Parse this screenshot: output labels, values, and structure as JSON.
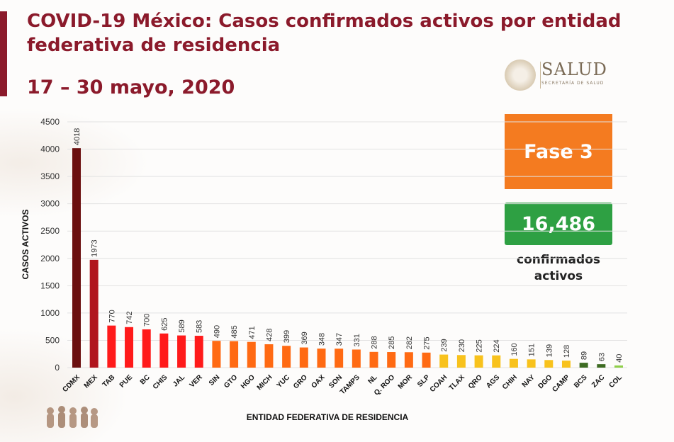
{
  "header": {
    "title_line1": "COVID-19 México: Casos confirmados activos por entidad",
    "title_line2": "federativa de residencia",
    "subtitle": "17 – 30 mayo, 2020"
  },
  "logo": {
    "name": "SALUD",
    "subtitle": "SECRETARÍA DE SALUD",
    "icon": "coat-of-arms-icon"
  },
  "info": {
    "phase": "Fase 3",
    "total": "16,486",
    "total_label_line1": "confirmados",
    "total_label_line2": "activos"
  },
  "colors": {
    "title": "#8b1a2b",
    "phase_box": "#f47b20",
    "total_box": "#2ea043"
  },
  "chart_data": {
    "type": "bar",
    "ylabel": "CASOS ACTIVOS",
    "xlabel": "ENTIDAD FEDERATIVA DE  RESIDENCIA",
    "ylim": [
      0,
      4500
    ],
    "yticks": [
      0,
      500,
      1000,
      1500,
      2000,
      2500,
      3000,
      3500,
      4000,
      4500
    ],
    "grid": true,
    "categories": [
      "CDMX",
      "MEX",
      "TAB",
      "PUE",
      "BC",
      "CHIS",
      "JAL",
      "VER",
      "SIN",
      "GTO",
      "HGO",
      "MICH",
      "YUC",
      "GRO",
      "OAX",
      "SON",
      "TAMPS",
      "NL",
      "Q. ROO",
      "MOR",
      "SLP",
      "COAH",
      "TLAX",
      "QRO",
      "AGS",
      "CHIH",
      "NAY",
      "DGO",
      "CAMP",
      "BCS",
      "ZAC",
      "COL"
    ],
    "values": [
      4018,
      1973,
      770,
      742,
      700,
      625,
      589,
      583,
      490,
      485,
      471,
      428,
      399,
      369,
      348,
      347,
      331,
      288,
      285,
      282,
      275,
      239,
      230,
      225,
      224,
      160,
      151,
      139,
      128,
      89,
      63,
      40
    ],
    "bar_colors": [
      "#6b0f0f",
      "#b0151e",
      "#ff1a1a",
      "#ff1a1a",
      "#ff1a1a",
      "#ff1a1a",
      "#ff1a1a",
      "#ff1a1a",
      "#ff6a13",
      "#ff6a13",
      "#ff6a13",
      "#ff6a13",
      "#ff6a13",
      "#ff6a13",
      "#ff6a13",
      "#ff6a13",
      "#ff6a13",
      "#ff6a13",
      "#ff6a13",
      "#ff6a13",
      "#ff6a13",
      "#f8c21c",
      "#f8c21c",
      "#f8c21c",
      "#f8c21c",
      "#f8c21c",
      "#f8c21c",
      "#f8c21c",
      "#f8c21c",
      "#3d6b22",
      "#3d6b22",
      "#8fcf4a"
    ]
  }
}
